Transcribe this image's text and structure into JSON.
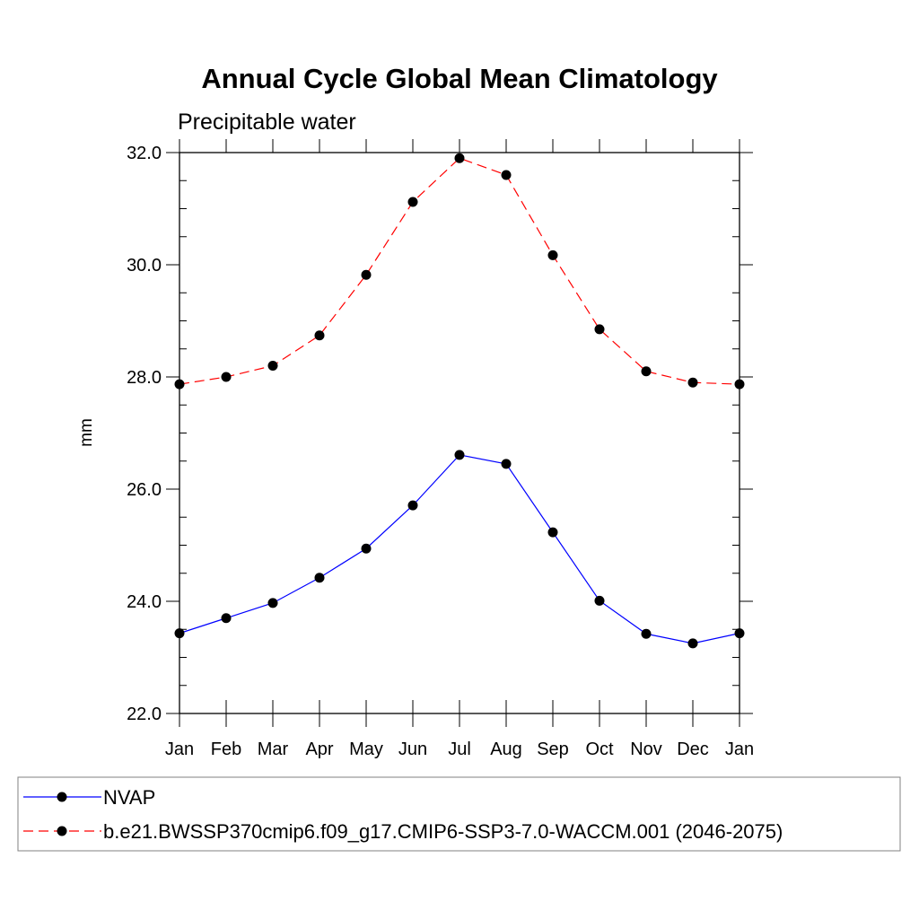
{
  "chart_data": {
    "type": "line",
    "title": "Annual Cycle Global Mean Climatology",
    "subtitle": "Precipitable water",
    "xlabel": "",
    "ylabel": "mm",
    "categories": [
      "Jan",
      "Feb",
      "Mar",
      "Apr",
      "May",
      "Jun",
      "Jul",
      "Aug",
      "Sep",
      "Oct",
      "Nov",
      "Dec",
      "Jan"
    ],
    "ylim": [
      22.0,
      32.0
    ],
    "yticks": [
      22.0,
      24.0,
      26.0,
      28.0,
      30.0,
      32.0
    ],
    "ytick_labels": [
      "22.0",
      "24.0",
      "26.0",
      "28.0",
      "30.0",
      "32.0"
    ],
    "grid": false,
    "legend_position": "bottom",
    "series": [
      {
        "name": "NVAP",
        "color": "#0000ff",
        "linestyle": "solid",
        "marker": "circle",
        "values": [
          23.43,
          23.7,
          23.97,
          24.42,
          24.94,
          25.71,
          26.61,
          26.45,
          25.23,
          24.01,
          23.42,
          23.25,
          23.43
        ]
      },
      {
        "name": "b.e21.BWSSP370cmip6.f09_g17.CMIP6-SSP3-7.0-WACCM.001 (2046-2075)",
        "color": "#ff0000",
        "linestyle": "dashed",
        "marker": "circle",
        "values": [
          27.87,
          28.0,
          28.2,
          28.74,
          29.82,
          31.12,
          31.9,
          31.6,
          30.17,
          28.85,
          28.1,
          27.9,
          27.87
        ]
      }
    ]
  }
}
